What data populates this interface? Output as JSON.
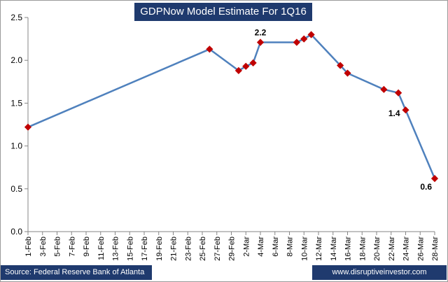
{
  "chart_data": {
    "type": "line",
    "title": "GDPNow Model Estimate For 1Q16",
    "xlabel": "",
    "ylabel": "",
    "ylim": [
      0,
      2.5
    ],
    "y_ticks": [
      "0.0",
      "0.5",
      "1.0",
      "1.5",
      "2.0",
      "2.5"
    ],
    "x_ticks": [
      "1-Feb",
      "3-Feb",
      "5-Feb",
      "7-Feb",
      "9-Feb",
      "11-Feb",
      "13-Feb",
      "15-Feb",
      "17-Feb",
      "19-Feb",
      "21-Feb",
      "23-Feb",
      "25-Feb",
      "27-Feb",
      "29-Feb",
      "2-Mar",
      "4-Mar",
      "6-Mar",
      "8-Mar",
      "10-Mar",
      "12-Mar",
      "14-Mar",
      "16-Mar",
      "18-Mar",
      "20-Mar",
      "22-Mar",
      "24-Mar",
      "26-Mar",
      "28-Mar"
    ],
    "grid": false,
    "line_color": "#4f81bd",
    "marker_color": "#c00000",
    "series": [
      {
        "x": [
          "1-Feb",
          "26-Feb",
          "1-Mar",
          "2-Mar",
          "3-Mar",
          "4-Mar",
          "9-Mar",
          "10-Mar",
          "11-Mar",
          "15-Mar",
          "16-Mar",
          "21-Mar",
          "23-Mar",
          "24-Mar",
          "28-Mar"
        ],
        "values": [
          1.22,
          2.13,
          1.88,
          1.93,
          1.97,
          2.21,
          2.21,
          2.25,
          2.3,
          1.94,
          1.85,
          1.66,
          1.62,
          1.42,
          0.62
        ]
      }
    ],
    "data_labels": [
      {
        "x": "4-Mar",
        "text": "2.2"
      },
      {
        "x": "24-Mar",
        "text": "1.4"
      },
      {
        "x": "28-Mar",
        "text": "0.6"
      }
    ]
  },
  "footer": {
    "source": "Source: Federal Reserve Bank of Atlanta",
    "site": "www.disruptiveinvestor.com"
  }
}
